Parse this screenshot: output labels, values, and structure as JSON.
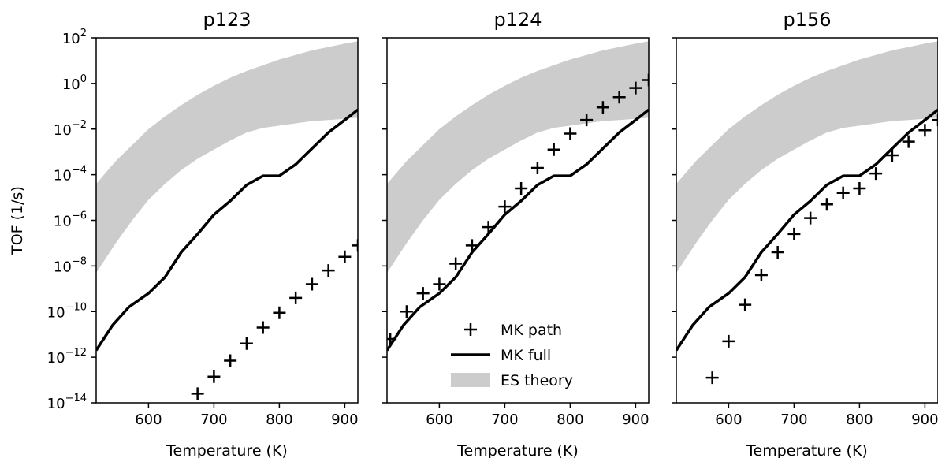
{
  "chart_data": [
    {
      "type": "line",
      "title": "p123",
      "xlabel": "Temperature (K)",
      "ylabel": "TOF (1/s)",
      "xlim": [
        520,
        920
      ],
      "ylim_exp": [
        -14,
        2
      ],
      "y_scale": "log",
      "x_ticks": [
        600,
        700,
        800,
        900
      ],
      "y_ticks_exp": [
        -14,
        -12,
        -10,
        -8,
        -6,
        -4,
        -2,
        0,
        2
      ],
      "series": [
        {
          "name": "MK path",
          "style": "markers",
          "marker": "plus",
          "x": [
            675,
            700,
            725,
            750,
            775,
            800,
            825,
            850,
            875,
            900,
            920
          ],
          "log10_y": [
            -13.6,
            -12.85,
            -12.15,
            -11.4,
            -10.7,
            -10.05,
            -9.4,
            -8.8,
            -8.2,
            -7.6,
            -7.1
          ]
        },
        {
          "name": "MK full",
          "style": "line",
          "x": [
            520,
            545,
            570,
            600,
            625,
            650,
            675,
            700,
            725,
            750,
            775,
            800,
            825,
            850,
            875,
            900,
            920
          ],
          "log10_y": [
            -11.7,
            -10.6,
            -9.8,
            -9.2,
            -8.5,
            -7.4,
            -6.6,
            -5.75,
            -5.15,
            -4.45,
            -4.05,
            -4.05,
            -3.55,
            -2.85,
            -2.15,
            -1.6,
            -1.15
          ]
        },
        {
          "name": "ES theory",
          "style": "band",
          "x": [
            520,
            550,
            575,
            600,
            625,
            650,
            675,
            700,
            725,
            750,
            775,
            800,
            825,
            850,
            875,
            900,
            920
          ],
          "log10_y_low": [
            -8.3,
            -7.0,
            -6.0,
            -5.1,
            -4.4,
            -3.8,
            -3.3,
            -2.9,
            -2.5,
            -2.15,
            -1.95,
            -1.85,
            -1.75,
            -1.65,
            -1.6,
            -1.55,
            -1.5
          ],
          "log10_y_high": [
            -4.4,
            -3.4,
            -2.7,
            -2.0,
            -1.45,
            -0.95,
            -0.5,
            -0.1,
            0.25,
            0.55,
            0.8,
            1.05,
            1.25,
            1.45,
            1.6,
            1.75,
            1.85
          ]
        }
      ]
    },
    {
      "type": "line",
      "title": "p124",
      "xlabel": "Temperature (K)",
      "xlim": [
        520,
        920
      ],
      "ylim_exp": [
        -14,
        2
      ],
      "y_scale": "log",
      "x_ticks": [
        600,
        700,
        800,
        900
      ],
      "series": [
        {
          "name": "MK path",
          "style": "markers",
          "marker": "plus",
          "x": [
            525,
            550,
            575,
            600,
            625,
            650,
            675,
            700,
            725,
            750,
            775,
            800,
            825,
            850,
            875,
            900,
            920
          ],
          "log10_y": [
            -11.2,
            -10.0,
            -9.2,
            -8.8,
            -7.9,
            -7.1,
            -6.3,
            -5.4,
            -4.6,
            -3.7,
            -2.9,
            -2.2,
            -1.6,
            -1.05,
            -0.6,
            -0.2,
            0.15
          ]
        },
        {
          "name": "MK full",
          "style": "line",
          "x": [
            520,
            545,
            570,
            600,
            625,
            650,
            675,
            700,
            725,
            750,
            775,
            800,
            825,
            850,
            875,
            900,
            920
          ],
          "log10_y": [
            -11.7,
            -10.6,
            -9.8,
            -9.2,
            -8.5,
            -7.4,
            -6.6,
            -5.75,
            -5.15,
            -4.45,
            -4.05,
            -4.05,
            -3.55,
            -2.85,
            -2.15,
            -1.6,
            -1.15
          ]
        },
        {
          "name": "ES theory",
          "style": "band",
          "x": [
            520,
            550,
            575,
            600,
            625,
            650,
            675,
            700,
            725,
            750,
            775,
            800,
            825,
            850,
            875,
            900,
            920
          ],
          "log10_y_low": [
            -8.3,
            -7.0,
            -6.0,
            -5.1,
            -4.4,
            -3.8,
            -3.3,
            -2.9,
            -2.5,
            -2.15,
            -1.95,
            -1.85,
            -1.75,
            -1.65,
            -1.6,
            -1.55,
            -1.5
          ],
          "log10_y_high": [
            -4.4,
            -3.4,
            -2.7,
            -2.0,
            -1.45,
            -0.95,
            -0.5,
            -0.1,
            0.25,
            0.55,
            0.8,
            1.05,
            1.25,
            1.45,
            1.6,
            1.75,
            1.85
          ]
        }
      ]
    },
    {
      "type": "line",
      "title": "p156",
      "xlabel": "Temperature (K)",
      "xlim": [
        520,
        920
      ],
      "ylim_exp": [
        -14,
        2
      ],
      "y_scale": "log",
      "x_ticks": [
        600,
        700,
        800,
        900
      ],
      "series": [
        {
          "name": "MK path",
          "style": "markers",
          "marker": "plus",
          "x": [
            575,
            600,
            625,
            650,
            675,
            700,
            725,
            750,
            775,
            800,
            825,
            850,
            875,
            900,
            920
          ],
          "log10_y": [
            -12.9,
            -11.3,
            -9.7,
            -8.4,
            -7.4,
            -6.6,
            -5.9,
            -5.3,
            -4.8,
            -4.6,
            -3.95,
            -3.15,
            -2.55,
            -2.05,
            -1.6
          ]
        },
        {
          "name": "MK full",
          "style": "line",
          "x": [
            520,
            545,
            570,
            600,
            625,
            650,
            675,
            700,
            725,
            750,
            775,
            800,
            825,
            850,
            875,
            900,
            920
          ],
          "log10_y": [
            -11.7,
            -10.6,
            -9.8,
            -9.2,
            -8.5,
            -7.4,
            -6.6,
            -5.75,
            -5.15,
            -4.45,
            -4.05,
            -4.05,
            -3.55,
            -2.85,
            -2.15,
            -1.6,
            -1.15
          ]
        },
        {
          "name": "ES theory",
          "style": "band",
          "x": [
            520,
            550,
            575,
            600,
            625,
            650,
            675,
            700,
            725,
            750,
            775,
            800,
            825,
            850,
            875,
            900,
            920
          ],
          "log10_y_low": [
            -8.3,
            -7.0,
            -6.0,
            -5.1,
            -4.4,
            -3.8,
            -3.3,
            -2.9,
            -2.5,
            -2.15,
            -1.95,
            -1.85,
            -1.75,
            -1.65,
            -1.6,
            -1.55,
            -1.5
          ],
          "log10_y_high": [
            -4.4,
            -3.4,
            -2.7,
            -2.0,
            -1.45,
            -0.95,
            -0.5,
            -0.1,
            0.25,
            0.55,
            0.8,
            1.05,
            1.25,
            1.45,
            1.6,
            1.75,
            1.85
          ]
        }
      ]
    }
  ],
  "legend": {
    "panel": 1,
    "placement": "lower-center",
    "entries": [
      {
        "label": "MK path",
        "style": "markers"
      },
      {
        "label": "MK full",
        "style": "line"
      },
      {
        "label": "ES theory",
        "style": "band"
      }
    ]
  },
  "colors": {
    "band": "#cccccc",
    "line": "#000000",
    "marker": "#000000",
    "axes": "#000000"
  }
}
